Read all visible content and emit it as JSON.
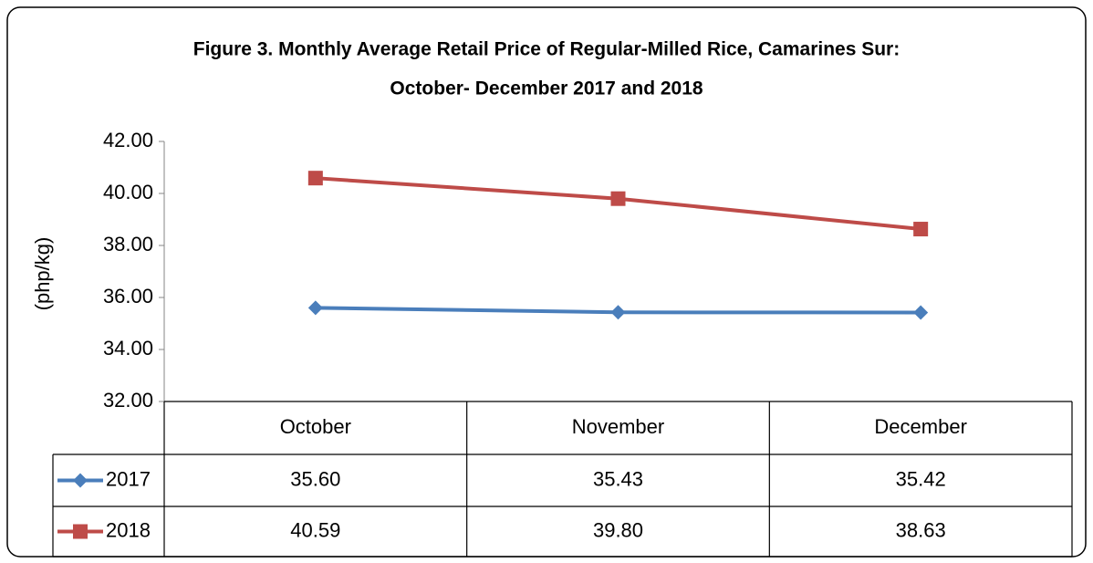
{
  "chart_data": {
    "type": "line",
    "title": [
      "Figure 3. Monthly  Average Retail Price of Regular-Milled Rice, Camarines Sur:",
      "October- December 2017 and 2018"
    ],
    "y_label": "(php/kg)",
    "categories": [
      "October",
      "November",
      "December"
    ],
    "series": [
      {
        "name": "2017",
        "color": "#4a7ebb",
        "marker": "diamond",
        "values": [
          35.6,
          35.43,
          35.42
        ],
        "value_labels": [
          "35.60",
          "35.43",
          "35.42"
        ]
      },
      {
        "name": "2018",
        "color": "#be4b48",
        "marker": "square",
        "values": [
          40.59,
          39.8,
          38.63
        ],
        "value_labels": [
          "40.59",
          "39.80",
          "38.63"
        ]
      }
    ],
    "ylim": [
      32,
      42
    ],
    "yticks": [
      {
        "value": 32,
        "label": "32.00"
      },
      {
        "value": 34,
        "label": "34.00"
      },
      {
        "value": 36,
        "label": "36.00"
      },
      {
        "value": 38,
        "label": "38.00"
      },
      {
        "value": 40,
        "label": "40.00"
      },
      {
        "value": 42,
        "label": "42.00"
      }
    ],
    "data_table": true
  }
}
